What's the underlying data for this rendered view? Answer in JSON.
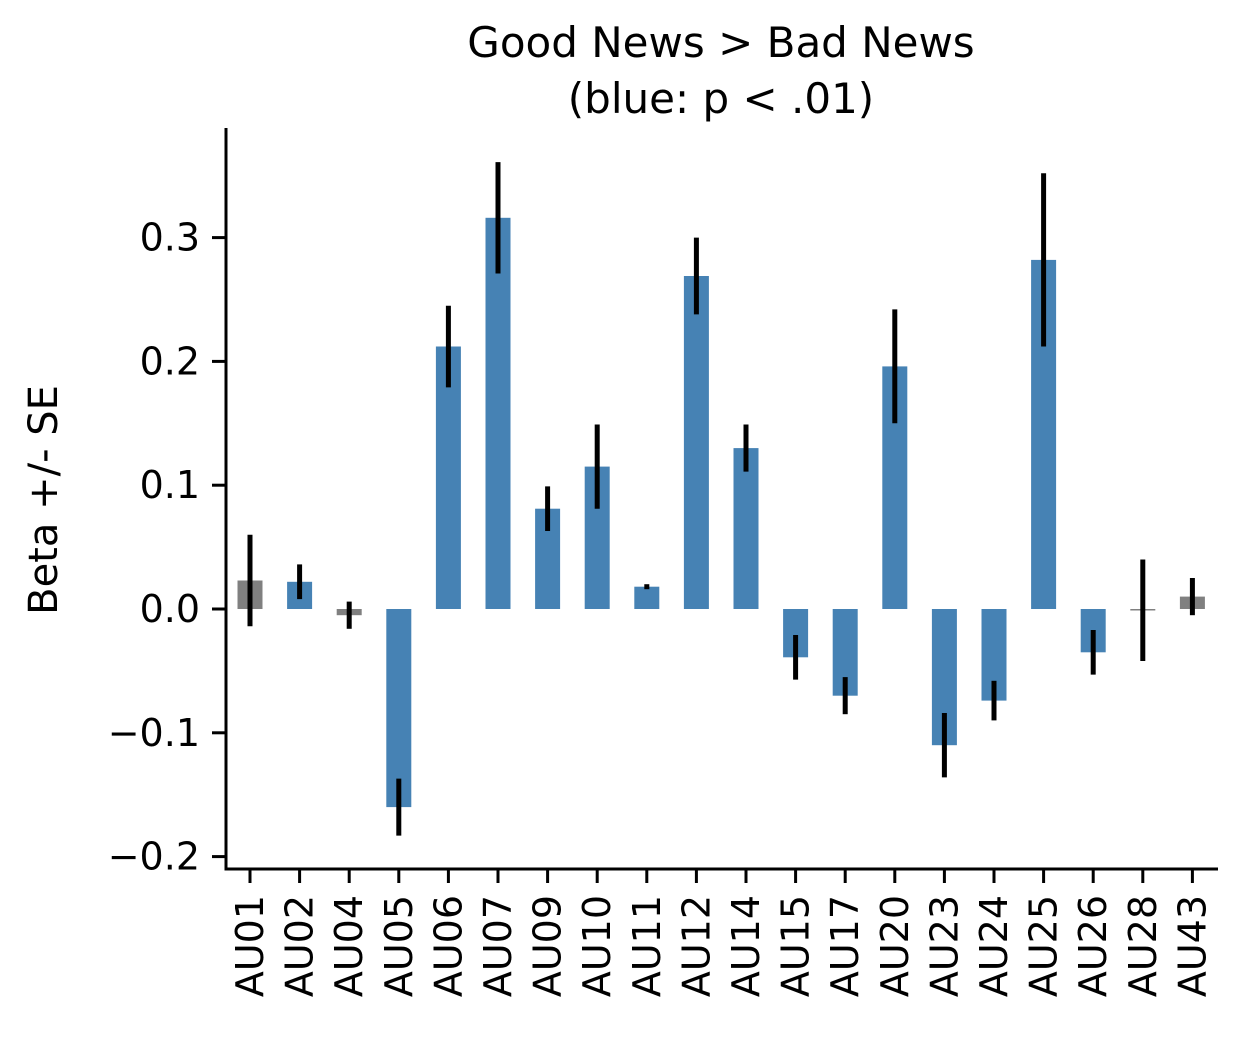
{
  "chart_data": {
    "type": "bar",
    "title": "Good News > Bad News",
    "subtitle": "(blue: p < .01)",
    "xlabel": "",
    "ylabel": "Beta +/- SE",
    "ylim": [
      -0.21,
      0.39
    ],
    "yticks": [
      -0.2,
      -0.1,
      0.0,
      0.1,
      0.2,
      0.3
    ],
    "ytick_labels": [
      "−0.2",
      "−0.1",
      "0.0",
      "0.1",
      "0.2",
      "0.3"
    ],
    "categories": [
      "AU01",
      "AU02",
      "AU04",
      "AU05",
      "AU06",
      "AU07",
      "AU09",
      "AU10",
      "AU11",
      "AU12",
      "AU14",
      "AU15",
      "AU17",
      "AU20",
      "AU23",
      "AU24",
      "AU25",
      "AU26",
      "AU28",
      "AU43"
    ],
    "values": [
      0.023,
      0.022,
      -0.005,
      -0.16,
      0.212,
      0.316,
      0.081,
      0.115,
      0.018,
      0.269,
      0.13,
      -0.039,
      -0.07,
      0.196,
      -0.11,
      -0.074,
      0.282,
      -0.035,
      -0.001,
      0.01
    ],
    "se": [
      0.037,
      0.014,
      0.011,
      0.023,
      0.033,
      0.045,
      0.018,
      0.034,
      0.002,
      0.031,
      0.019,
      0.018,
      0.015,
      0.046,
      0.026,
      0.016,
      0.07,
      0.018,
      0.041,
      0.015
    ],
    "significant": [
      false,
      true,
      false,
      true,
      true,
      true,
      true,
      true,
      true,
      true,
      true,
      true,
      true,
      true,
      true,
      true,
      true,
      true,
      false,
      false
    ],
    "colors": {
      "significant": "#4682b4",
      "not_significant": "#808080",
      "error_bar": "#000000",
      "axis": "#000000"
    },
    "grid": false,
    "legend": "none"
  }
}
